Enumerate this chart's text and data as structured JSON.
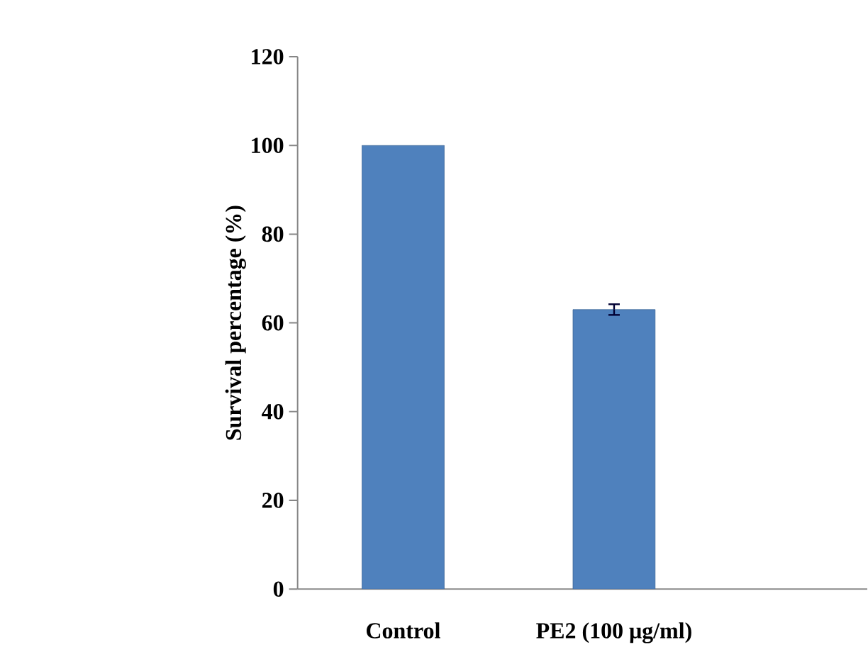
{
  "chart_data": {
    "type": "bar",
    "ylabel": "Survival percentage (%)",
    "categories": [
      "Control",
      "PE2 (100 μg/ml)"
    ],
    "values": [
      100,
      63
    ],
    "errors": [
      null,
      1.2
    ],
    "color": "#4f81bd",
    "ylim": [
      0,
      120
    ],
    "yticks": [
      0,
      20,
      40,
      60,
      80,
      100,
      120
    ],
    "grid": false
  }
}
